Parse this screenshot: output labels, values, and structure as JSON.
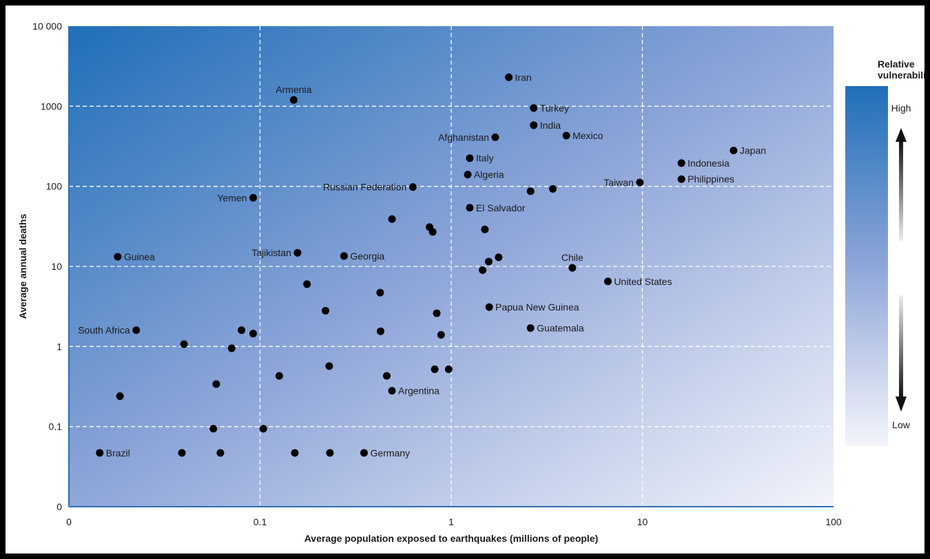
{
  "chart_data": {
    "type": "scatter",
    "title": "",
    "xlabel": "Average population exposed to earthquakes (millions of people)",
    "ylabel": "Average annual deaths",
    "x_scale": "log",
    "y_scale": "log",
    "xlim": [
      0.01,
      100
    ],
    "ylim": [
      0.01,
      10000
    ],
    "x_ticks": [
      {
        "value": 0.01,
        "label": "0"
      },
      {
        "value": 0.1,
        "label": "0.1"
      },
      {
        "value": 1,
        "label": "1"
      },
      {
        "value": 10,
        "label": "10"
      },
      {
        "value": 100,
        "label": "100"
      }
    ],
    "y_ticks": [
      {
        "value": 0.01,
        "label": "0"
      },
      {
        "value": 0.1,
        "label": "0.1"
      },
      {
        "value": 1,
        "label": "1"
      },
      {
        "value": 10,
        "label": "10"
      },
      {
        "value": 100,
        "label": "100"
      },
      {
        "value": 1000,
        "label": "1000"
      },
      {
        "value": 10000,
        "label": "10 000"
      }
    ],
    "grid": true,
    "gradient": {
      "high_color": "#1f6fb8",
      "mid_color": "#8fa6d9",
      "low_color": "#f4f5fb"
    },
    "legend": {
      "title": [
        "Relative",
        "vulnerability"
      ],
      "high": "High",
      "low": "Low",
      "position": "right"
    },
    "points": [
      {
        "x": 2.0,
        "y": 2300,
        "label": "Iran",
        "label_pos": "right"
      },
      {
        "x": 0.15,
        "y": 1200,
        "label": "Armenia",
        "label_pos": "above"
      },
      {
        "x": 2.7,
        "y": 950,
        "label": "Turkey",
        "label_pos": "right"
      },
      {
        "x": 2.7,
        "y": 580,
        "label": "India",
        "label_pos": "right"
      },
      {
        "x": 4.0,
        "y": 430,
        "label": "Mexico",
        "label_pos": "right"
      },
      {
        "x": 1.7,
        "y": 410,
        "label": "Afghanistan",
        "label_pos": "left"
      },
      {
        "x": 30,
        "y": 280,
        "label": "Japan",
        "label_pos": "right"
      },
      {
        "x": 1.25,
        "y": 225,
        "label": "Italy",
        "label_pos": "right"
      },
      {
        "x": 16,
        "y": 195,
        "label": "Indonesia",
        "label_pos": "right"
      },
      {
        "x": 1.22,
        "y": 140,
        "label": "Algeria",
        "label_pos": "right"
      },
      {
        "x": 16,
        "y": 123,
        "label": "Philippines",
        "label_pos": "right"
      },
      {
        "x": 9.7,
        "y": 112,
        "label": "Taiwan",
        "label_pos": "left"
      },
      {
        "x": 0.63,
        "y": 98,
        "label": "Russian Federation",
        "label_pos": "left"
      },
      {
        "x": 3.4,
        "y": 93,
        "label": "",
        "label_pos": "none"
      },
      {
        "x": 2.6,
        "y": 87,
        "label": "",
        "label_pos": "none"
      },
      {
        "x": 0.092,
        "y": 72,
        "label": "Yemen",
        "label_pos": "left"
      },
      {
        "x": 1.25,
        "y": 54,
        "label": "El Salvador",
        "label_pos": "right"
      },
      {
        "x": 0.49,
        "y": 39,
        "label": "",
        "label_pos": "none"
      },
      {
        "x": 0.77,
        "y": 31,
        "label": "",
        "label_pos": "none"
      },
      {
        "x": 0.8,
        "y": 27,
        "label": "",
        "label_pos": "none"
      },
      {
        "x": 1.5,
        "y": 29,
        "label": "",
        "label_pos": "none"
      },
      {
        "x": 0.157,
        "y": 14.8,
        "label": "Tajikistan",
        "label_pos": "left"
      },
      {
        "x": 0.018,
        "y": 13.2,
        "label": "Guinea",
        "label_pos": "right"
      },
      {
        "x": 0.275,
        "y": 13.5,
        "label": "Georgia",
        "label_pos": "right"
      },
      {
        "x": 1.77,
        "y": 13,
        "label": "",
        "label_pos": "none"
      },
      {
        "x": 1.57,
        "y": 11.5,
        "label": "",
        "label_pos": "none"
      },
      {
        "x": 1.46,
        "y": 9,
        "label": "",
        "label_pos": "none"
      },
      {
        "x": 4.3,
        "y": 9.6,
        "label": "Chile",
        "label_pos": "above"
      },
      {
        "x": 6.6,
        "y": 6.5,
        "label": "United States",
        "label_pos": "right"
      },
      {
        "x": 0.176,
        "y": 6,
        "label": "",
        "label_pos": "none"
      },
      {
        "x": 0.425,
        "y": 4.7,
        "label": "",
        "label_pos": "none"
      },
      {
        "x": 1.58,
        "y": 3.1,
        "label": "Papua New Guinea",
        "label_pos": "right"
      },
      {
        "x": 0.22,
        "y": 2.8,
        "label": "",
        "label_pos": "none"
      },
      {
        "x": 0.84,
        "y": 2.6,
        "label": "",
        "label_pos": "none"
      },
      {
        "x": 2.6,
        "y": 1.7,
        "label": "Guatemala",
        "label_pos": "right"
      },
      {
        "x": 0.0225,
        "y": 1.6,
        "label": "South Africa",
        "label_pos": "left"
      },
      {
        "x": 0.08,
        "y": 1.6,
        "label": "",
        "label_pos": "none"
      },
      {
        "x": 0.092,
        "y": 1.45,
        "label": "",
        "label_pos": "none"
      },
      {
        "x": 0.427,
        "y": 1.55,
        "label": "",
        "label_pos": "none"
      },
      {
        "x": 0.885,
        "y": 1.4,
        "label": "",
        "label_pos": "none"
      },
      {
        "x": 0.04,
        "y": 1.07,
        "label": "",
        "label_pos": "none"
      },
      {
        "x": 0.071,
        "y": 0.95,
        "label": "",
        "label_pos": "none"
      },
      {
        "x": 0.23,
        "y": 0.57,
        "label": "",
        "label_pos": "none"
      },
      {
        "x": 0.82,
        "y": 0.52,
        "label": "",
        "label_pos": "none"
      },
      {
        "x": 0.97,
        "y": 0.52,
        "label": "",
        "label_pos": "none"
      },
      {
        "x": 0.126,
        "y": 0.43,
        "label": "",
        "label_pos": "none"
      },
      {
        "x": 0.46,
        "y": 0.43,
        "label": "",
        "label_pos": "none"
      },
      {
        "x": 0.059,
        "y": 0.34,
        "label": "",
        "label_pos": "none"
      },
      {
        "x": 0.49,
        "y": 0.28,
        "label": "Argentina",
        "label_pos": "right"
      },
      {
        "x": 0.0185,
        "y": 0.24,
        "label": "",
        "label_pos": "none"
      },
      {
        "x": 0.057,
        "y": 0.094,
        "label": "",
        "label_pos": "none"
      },
      {
        "x": 0.104,
        "y": 0.094,
        "label": "",
        "label_pos": "none"
      },
      {
        "x": 0.0145,
        "y": 0.047,
        "label": "Brazil",
        "label_pos": "right"
      },
      {
        "x": 0.039,
        "y": 0.047,
        "label": "",
        "label_pos": "none"
      },
      {
        "x": 0.062,
        "y": 0.047,
        "label": "",
        "label_pos": "none"
      },
      {
        "x": 0.152,
        "y": 0.047,
        "label": "",
        "label_pos": "none"
      },
      {
        "x": 0.232,
        "y": 0.047,
        "label": "",
        "label_pos": "none"
      },
      {
        "x": 0.35,
        "y": 0.047,
        "label": "Germany",
        "label_pos": "right"
      }
    ]
  }
}
